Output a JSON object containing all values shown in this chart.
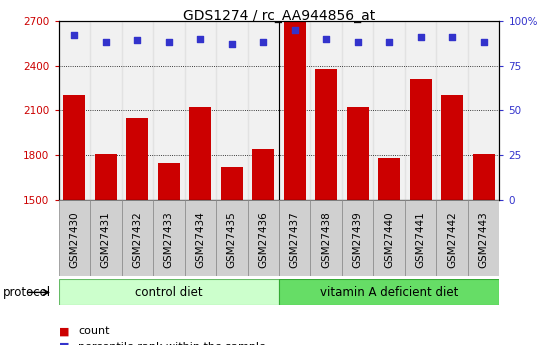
{
  "title": "GDS1274 / rc_AA944856_at",
  "samples": [
    "GSM27430",
    "GSM27431",
    "GSM27432",
    "GSM27433",
    "GSM27434",
    "GSM27435",
    "GSM27436",
    "GSM27437",
    "GSM27438",
    "GSM27439",
    "GSM27440",
    "GSM27441",
    "GSM27442",
    "GSM27443"
  ],
  "counts": [
    2200,
    1810,
    2050,
    1750,
    2120,
    1720,
    1840,
    2690,
    2380,
    2120,
    1780,
    2310,
    2200,
    1810
  ],
  "percentiles": [
    92,
    88,
    89,
    88,
    90,
    87,
    88,
    95,
    90,
    88,
    88,
    91,
    91,
    88
  ],
  "groups": [
    {
      "label": "control diet",
      "start": 0,
      "end": 7,
      "color": "#ccffcc",
      "edge_color": "#66bb66"
    },
    {
      "label": "vitamin A deficient diet",
      "start": 7,
      "end": 14,
      "color": "#66dd66",
      "edge_color": "#33aa33"
    }
  ],
  "bar_color": "#cc0000",
  "dot_color": "#3333cc",
  "ylim_left": [
    1500,
    2700
  ],
  "yticks_left": [
    1500,
    1800,
    2100,
    2400,
    2700
  ],
  "ylim_right": [
    0,
    100
  ],
  "yticks_right": [
    0,
    25,
    50,
    75,
    100
  ],
  "ytick_right_labels": [
    "0",
    "25",
    "50",
    "75",
    "100%"
  ],
  "ylabel_left_color": "#cc0000",
  "ylabel_right_color": "#3333cc",
  "grid_color": "#000000",
  "title_fontsize": 10,
  "tick_fontsize": 7.5,
  "label_fontsize": 8.5,
  "legend_fontsize": 8,
  "protocol_label": "protocol",
  "bar_width": 0.7,
  "col_bg_color": "#d8d8d8"
}
